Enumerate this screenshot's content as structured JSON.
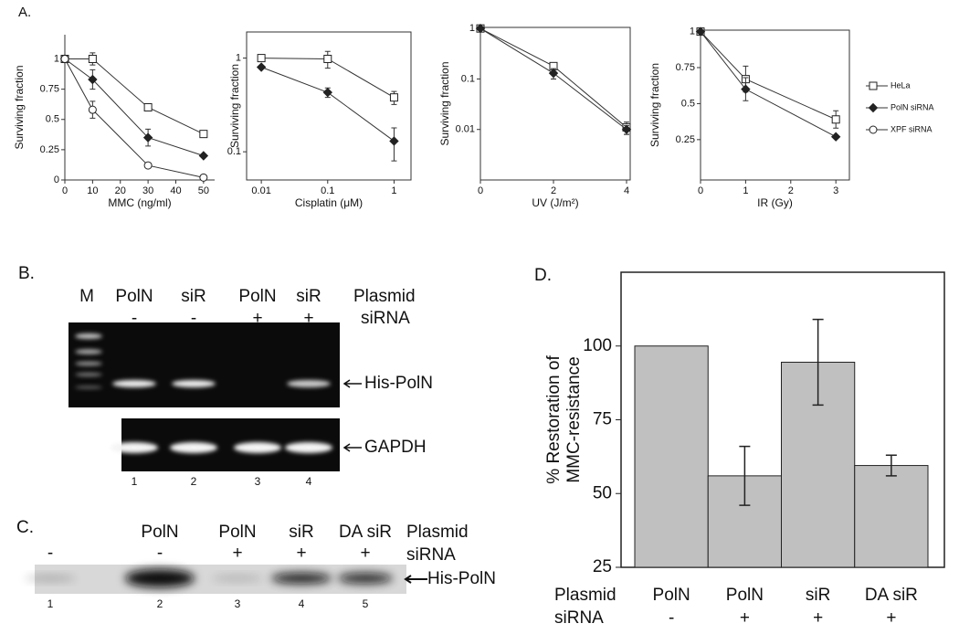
{
  "panel_labels": {
    "a": "A.",
    "b": "B.",
    "c": "C.",
    "d": "D."
  },
  "chart_data": [
    {
      "type": "line",
      "xlabel": "MMC  (ng/ml)",
      "ylabel": "Surviving fraction",
      "x": [
        0,
        10,
        30,
        50
      ],
      "xlim": [
        0,
        54
      ],
      "xticks": [
        0,
        10,
        20,
        30,
        40,
        50
      ],
      "ylim": [
        0,
        1.2
      ],
      "yticks": [
        0,
        0.25,
        0.5,
        0.75,
        1
      ],
      "box": false,
      "series": [
        {
          "name": "HeLa",
          "marker": "square",
          "color": "#444444",
          "values": [
            1,
            1,
            0.6,
            0.38
          ],
          "errors": [
            null,
            0.05,
            null,
            null
          ]
        },
        {
          "name": "PolN siRNA",
          "marker": "diamond",
          "color": "#222222",
          "values": [
            1,
            0.83,
            0.35,
            0.2
          ],
          "errors": [
            null,
            0.08,
            0.07,
            null
          ]
        },
        {
          "name": "XPF siRNA",
          "marker": "circle",
          "color": "#444444",
          "values": [
            1,
            0.58,
            0.12,
            0.02
          ],
          "errors": [
            null,
            0.07,
            null,
            null
          ]
        }
      ]
    },
    {
      "type": "line",
      "xlabel": "Cisplatin (μM)",
      "ylabel": "Surviving fraction",
      "x": [
        0.01,
        0.1,
        1
      ],
      "xlog": true,
      "xlim": [
        0.006,
        1.8
      ],
      "xticks": [
        0.01,
        0.1,
        1
      ],
      "ylog": true,
      "ylim": [
        0.05,
        1.9
      ],
      "yticks": [
        0.1,
        1
      ],
      "box": true,
      "series": [
        {
          "marker": "square",
          "color": "#444444",
          "values": [
            1,
            0.98,
            0.38
          ],
          "errors": [
            null,
            0.2,
            0.06
          ]
        },
        {
          "marker": "diamond",
          "color": "#222222",
          "values": [
            0.8,
            0.43,
            0.13
          ],
          "errors": [
            null,
            0.05,
            0.05
          ]
        }
      ]
    },
    {
      "type": "line",
      "xlabel": "UV (J/m²)",
      "ylabel": "Surviving fraction",
      "x": [
        0,
        2,
        4
      ],
      "xlim": [
        0,
        4.1
      ],
      "xticks": [
        0,
        2,
        4
      ],
      "ylog": true,
      "ylim": [
        0.001,
        1.05
      ],
      "yticks": [
        0.01,
        0.1,
        1
      ],
      "box": true,
      "series": [
        {
          "marker": "square",
          "color": "#444444",
          "values": [
            1,
            0.18,
            0.011
          ],
          "errors": [
            null,
            null,
            0.003
          ]
        },
        {
          "marker": "diamond",
          "color": "#222222",
          "values": [
            1,
            0.13,
            0.01
          ],
          "errors": [
            null,
            0.03,
            0.002
          ]
        }
      ]
    },
    {
      "type": "line",
      "xlabel": "IR (Gy)",
      "ylabel": "Surviving fraction",
      "x": [
        0,
        1,
        3
      ],
      "xlim": [
        0,
        3.3
      ],
      "xticks": [
        0,
        1,
        2,
        3
      ],
      "ylim": [
        -0.03,
        1.01
      ],
      "yticks": [
        0.25,
        0.5,
        0.75,
        1
      ],
      "box": true,
      "series": [
        {
          "marker": "square",
          "color": "#444444",
          "values": [
            1,
            0.67,
            0.39
          ],
          "errors": [
            null,
            0.09,
            0.06
          ]
        },
        {
          "marker": "diamond",
          "color": "#222222",
          "values": [
            1,
            0.6,
            0.27
          ],
          "errors": [
            null,
            0.08,
            null
          ]
        }
      ]
    },
    {
      "type": "bar",
      "ylabel": [
        "% Restoration of",
        "MMC-resistance"
      ],
      "categories": [
        "PolN",
        "PolN",
        "siR",
        "DA siR"
      ],
      "siRNA": [
        "-",
        "+",
        "+",
        "+"
      ],
      "row_labels": [
        "Plasmid",
        "siRNA"
      ],
      "color": "#c0c0c0",
      "values": [
        100,
        56,
        94.5,
        59.5
      ],
      "errors": [
        null,
        10,
        14.5,
        3.5
      ],
      "ylim": [
        25,
        125
      ],
      "yticks": [
        25,
        50,
        75,
        100
      ]
    }
  ],
  "gel_b": {
    "top_row": [
      "M",
      "PolN",
      "siR",
      "PolN",
      "siR"
    ],
    "plasmid_label": "Plasmid",
    "siRNA": [
      "-",
      "-",
      "+",
      "+"
    ],
    "siRNA_label": "siRNA",
    "bands": [
      "His-PolN",
      "GAPDH"
    ],
    "lanes": [
      "1",
      "2",
      "3",
      "4"
    ]
  },
  "gel_c": {
    "plasmid": [
      null,
      "PolN",
      "PolN",
      "siR",
      "DA siR"
    ],
    "plasmid_label": "Plasmid",
    "siRNA": [
      "-",
      "-",
      "+",
      "+",
      "+"
    ],
    "siRNA_label": "siRNA",
    "band": "His-PolN",
    "lanes": [
      "1",
      "2",
      "3",
      "4",
      "5"
    ]
  }
}
